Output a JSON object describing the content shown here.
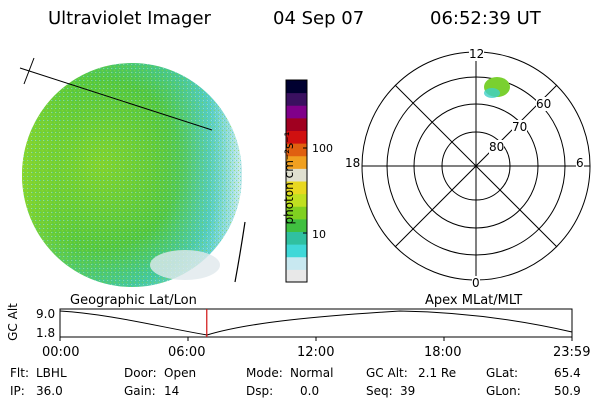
{
  "header": {
    "instrument": "Ultraviolet Imager",
    "date": "04 Sep 07",
    "time": "06:52:39 UT"
  },
  "colorbar": {
    "unit_label": "photon cm⁻²s⁻¹",
    "tick_100": "100",
    "tick_10": "10",
    "colors": [
      "#e8e8e8",
      "#c8e8f0",
      "#40d8d8",
      "#30c0a0",
      "#40c040",
      "#80d020",
      "#c0e020",
      "#e8d820",
      "#e0e0d0",
      "#f0a020",
      "#e06010",
      "#d01010",
      "#a00020",
      "#80008a",
      "#3a1060",
      "#000030"
    ]
  },
  "polar_plot": {
    "label_top": "12",
    "label_bottom": "0",
    "label_left": "18",
    "label_right": "6",
    "ring_60": "60",
    "ring_70": "70",
    "ring_80": "80"
  },
  "timeline": {
    "left_title": "Geographic Lat/Lon",
    "right_title": "Apex MLat/MLT",
    "y_axis_label": "GC Alt",
    "y_max": "9.0",
    "y_min": "1.8",
    "x_ticks": [
      "00:00",
      "06:00",
      "12:00",
      "18:00",
      "23:59"
    ],
    "current_time_hours": 6.88,
    "marker_color": "#d01010"
  },
  "status": {
    "flt_label": "Flt:",
    "flt_value": "LBHL",
    "ip_label": "IP:",
    "ip_value": "36.0",
    "door_label": "Door:",
    "door_value": "Open",
    "gain_label": "Gain:",
    "gain_value": "14",
    "mode_label": "Mode:",
    "mode_value": "Normal",
    "dsp_label": "Dsp:",
    "dsp_value": "0.0",
    "gcalt_label": "GC Alt:",
    "gcalt_value": "2.1 Re",
    "seq_label": "Seq:",
    "seq_value": "39",
    "glat_label": "GLat:",
    "glat_value": "65.4",
    "glon_label": "GLon:",
    "glon_value": "50.9"
  }
}
